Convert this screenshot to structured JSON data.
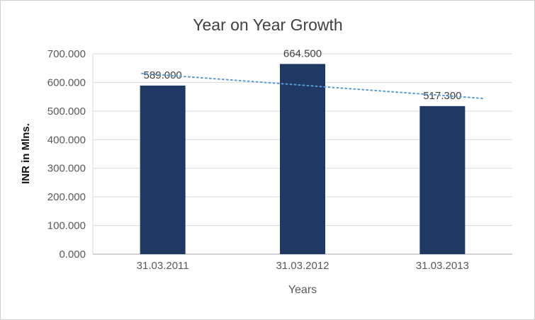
{
  "chart_data": {
    "type": "bar",
    "title": "Year on Year Growth",
    "xlabel": "Years",
    "ylabel": "INR in Mlns.",
    "categories": [
      "31.03.2011",
      "31.03.2012",
      "31.03.2013"
    ],
    "values": [
      589,
      664.5,
      517.3
    ],
    "data_labels": [
      "589.000",
      "664.500",
      "517.300"
    ],
    "ylim": [
      0,
      700
    ],
    "ytick_step": 100,
    "ytick_labels": [
      "0.000",
      "100.000",
      "200.000",
      "300.000",
      "400.000",
      "500.000",
      "600.000",
      "700.000"
    ],
    "grid": true,
    "legend": "none",
    "bar_color": "#1F3864",
    "trendline": {
      "type": "linear",
      "style": "dotted",
      "color": "#5B9BD5"
    }
  }
}
